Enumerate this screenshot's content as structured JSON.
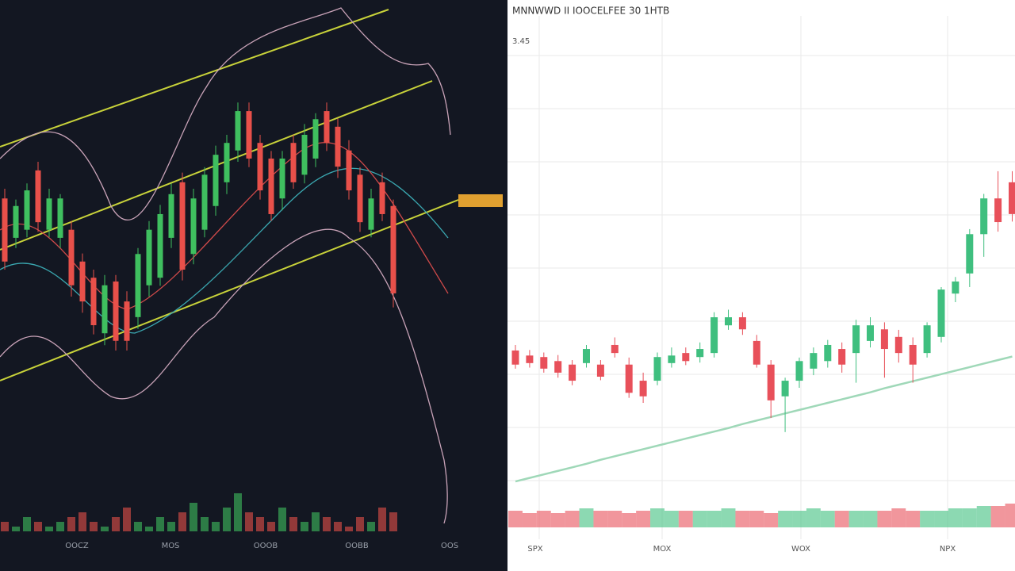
{
  "chart_data": [
    {
      "type": "candlestick",
      "theme": "dark",
      "up_color": "#3fbf5f",
      "down_color": "#e8504a",
      "ylim": [
        0,
        100
      ],
      "volume_lim": [
        0,
        10
      ],
      "x_labels": [
        "OOCZ",
        "MOS",
        "OOOB",
        "OOBB",
        "OOS"
      ],
      "open": [
        63.2,
        55.9,
        57.4,
        68.4,
        57.4,
        55.9,
        57.4,
        51.5,
        48.5,
        38.2,
        47.8,
        44.1,
        41.2,
        47.1,
        48.5,
        55.9,
        66.2,
        52.9,
        57.4,
        61.8,
        66.2,
        72.1,
        79.4,
        73.5,
        70.6,
        63.2,
        73.5,
        67.6,
        70.6,
        79.4,
        76.5,
        72.1,
        67.6,
        57.4,
        66.2,
        61.8
      ],
      "high": [
        65,
        63,
        66,
        70,
        65,
        64,
        59,
        53,
        50,
        49,
        49,
        46,
        54,
        59,
        62,
        66,
        68,
        65,
        69,
        73,
        75,
        81,
        81,
        75,
        72,
        72,
        75,
        77,
        79,
        81,
        78,
        74,
        69,
        65,
        68,
        63
      ],
      "low": [
        50,
        54,
        56,
        57,
        56,
        54,
        45,
        42,
        38,
        36,
        35,
        35,
        39,
        45,
        47,
        54,
        48,
        51,
        56,
        60,
        64,
        70,
        69,
        63,
        59,
        61,
        65,
        66,
        69,
        72,
        67,
        63,
        57,
        56,
        59,
        43
      ],
      "close": [
        51.5,
        61.8,
        64.7,
        58.8,
        63.2,
        63.2,
        47.1,
        44.1,
        39.7,
        47.1,
        36.8,
        36.8,
        52.9,
        57.4,
        60.3,
        64.0,
        50,
        63.2,
        67.6,
        71.3,
        73.5,
        79.4,
        70.6,
        64.7,
        60.3,
        70.6,
        66.2,
        75,
        77.9,
        73.5,
        69.1,
        64.7,
        58.8,
        63.2,
        60.3,
        45.6
      ],
      "volume": [
        2,
        1,
        3,
        2,
        1,
        2,
        3,
        4,
        2,
        1,
        3,
        5,
        2,
        1,
        3,
        2,
        4,
        6,
        3,
        2,
        5,
        8,
        4,
        3,
        2,
        5,
        3,
        2,
        4,
        3,
        2,
        1,
        3,
        2,
        5,
        4
      ]
    },
    {
      "type": "candlestick",
      "theme": "light",
      "up_color": "#3fbf7f",
      "down_color": "#e8505a",
      "ylim": [
        0,
        100
      ],
      "volume_lim": [
        0,
        10
      ],
      "title": "MNNWWD II IOOCELFEE 30 1HTB",
      "subtitle": "3.45",
      "x_labels": [
        "SPX",
        "MOX",
        "WOX",
        "NPX"
      ],
      "ma_color": "#9fd8b8",
      "open": [
        30.4,
        29.4,
        29.1,
        28.3,
        27.6,
        27.9,
        27.6,
        31.5,
        27.6,
        24.4,
        24.4,
        27.9,
        29.9,
        29.1,
        29.9,
        35.4,
        37,
        32.3,
        27.6,
        21.3,
        24.4,
        26.8,
        28.3,
        30.7,
        29.9,
        32.3,
        34.6,
        33.1,
        31.5,
        29.9,
        33.1,
        41.7,
        45.7,
        53.5,
        60.6,
        63.8
      ],
      "high": [
        31.5,
        30.5,
        30,
        29.5,
        28.5,
        31.5,
        28.5,
        33,
        29,
        26,
        30,
        31,
        31,
        32,
        38,
        38.5,
        38,
        33.5,
        28.5,
        25,
        29,
        31,
        32.5,
        32,
        36.5,
        37,
        36,
        34.5,
        33,
        36,
        43,
        45,
        54.5,
        61.5,
        66,
        66
      ],
      "low": [
        26.8,
        27,
        26,
        25,
        23.5,
        27,
        24.5,
        29,
        21,
        20,
        23.5,
        27,
        27.5,
        28,
        29,
        34.5,
        33.5,
        27,
        17,
        14.2,
        23,
        25.5,
        27,
        26,
        24,
        31,
        25,
        28,
        24,
        29,
        32,
        40,
        43,
        49,
        54,
        56
      ],
      "close": [
        27.6,
        27.9,
        26.8,
        26,
        24.4,
        30.7,
        25.2,
        29.9,
        22,
        21.3,
        29.1,
        29.4,
        28.3,
        30.7,
        37,
        37,
        34.6,
        27.6,
        20.5,
        24.4,
        28.3,
        29.9,
        31.5,
        27.6,
        35.4,
        35.4,
        30.7,
        29.9,
        27.6,
        35.4,
        42.5,
        44.1,
        53.5,
        60.6,
        55.9,
        57.5
      ],
      "ma": [
        4.4,
        5.1,
        5.8,
        6.5,
        7.2,
        7.9,
        8.7,
        9.4,
        10.1,
        10.8,
        11.5,
        12.2,
        12.9,
        13.6,
        14.3,
        15.0,
        15.8,
        16.5,
        17.2,
        17.9,
        18.6,
        19.3,
        20.0,
        20.7,
        21.4,
        22.1,
        22.9,
        23.6,
        24.3,
        25.0,
        25.7,
        26.4,
        27.1,
        27.8,
        28.5,
        29.2
      ],
      "volume": [
        7,
        6,
        7,
        6,
        7,
        8,
        7,
        7,
        6,
        7,
        8,
        7,
        7,
        7,
        7,
        8,
        7,
        7,
        6,
        7,
        7,
        8,
        7,
        7,
        7,
        7,
        7,
        8,
        7,
        7,
        7,
        8,
        8,
        9,
        9,
        10
      ]
    }
  ]
}
